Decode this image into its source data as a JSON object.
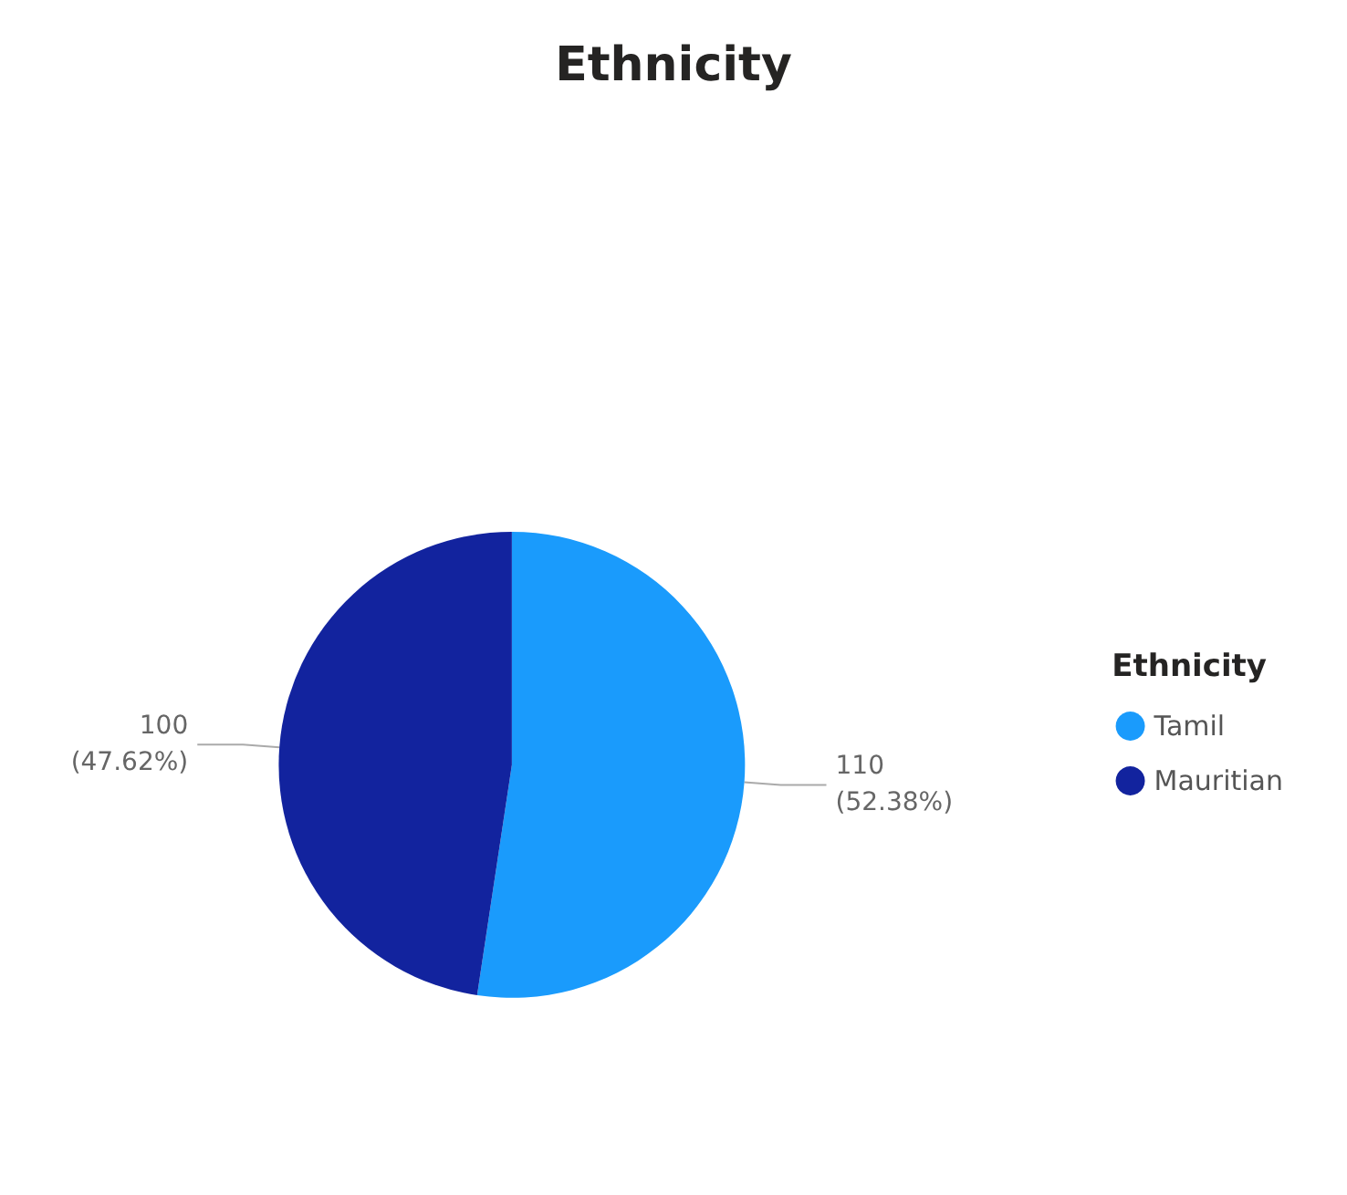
{
  "chart_data": {
    "type": "pie",
    "title": "Ethnicity",
    "legend_title": "Ethnicity",
    "legend": "right",
    "categories": [
      "Tamil",
      "Mauritian"
    ],
    "values": [
      110,
      100
    ],
    "colors": [
      "#1a9bfc",
      "#12239e"
    ],
    "value_labels": [
      "110\n(52.38%)",
      "100\n(47.62%)"
    ]
  }
}
